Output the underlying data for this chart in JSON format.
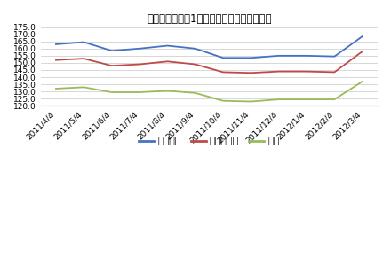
{
  "title": "ガソリン・軽油1リットルあたりの価格推移",
  "x_labels": [
    "2011/4/4",
    "2011/5/4",
    "2011/6/4",
    "2011/7/4",
    "2011/8/4",
    "2011/9/4",
    "2011/10/4",
    "2011/11/4",
    "2011/12/4",
    "2012/1/4",
    "2012/2/4",
    "2012/3/4"
  ],
  "haioku": [
    163.0,
    164.5,
    158.5,
    160.0,
    162.0,
    160.0,
    153.5,
    153.5,
    155.0,
    155.0,
    154.5,
    168.5
  ],
  "regular": [
    152.0,
    153.0,
    148.0,
    149.0,
    151.0,
    149.0,
    143.5,
    143.0,
    144.0,
    144.0,
    143.5,
    158.0
  ],
  "keiyuu": [
    132.0,
    133.0,
    129.5,
    129.5,
    130.5,
    129.0,
    123.5,
    123.0,
    124.5,
    124.5,
    124.5,
    137.0
  ],
  "haioku_color": "#4472C4",
  "regular_color": "#BE4B48",
  "keiyuu_color": "#9BBB59",
  "ylim": [
    120.0,
    175.0
  ],
  "yticks": [
    120.0,
    125.0,
    130.0,
    135.0,
    140.0,
    145.0,
    150.0,
    155.0,
    160.0,
    165.0,
    170.0,
    175.0
  ],
  "legend_labels": [
    "ハイオク",
    "レギュラー",
    "軽油"
  ],
  "bg_color": "#ffffff",
  "grid_color": "#c8c8c8",
  "title_fontsize": 8.5,
  "tick_fontsize": 6.5,
  "legend_fontsize": 8
}
